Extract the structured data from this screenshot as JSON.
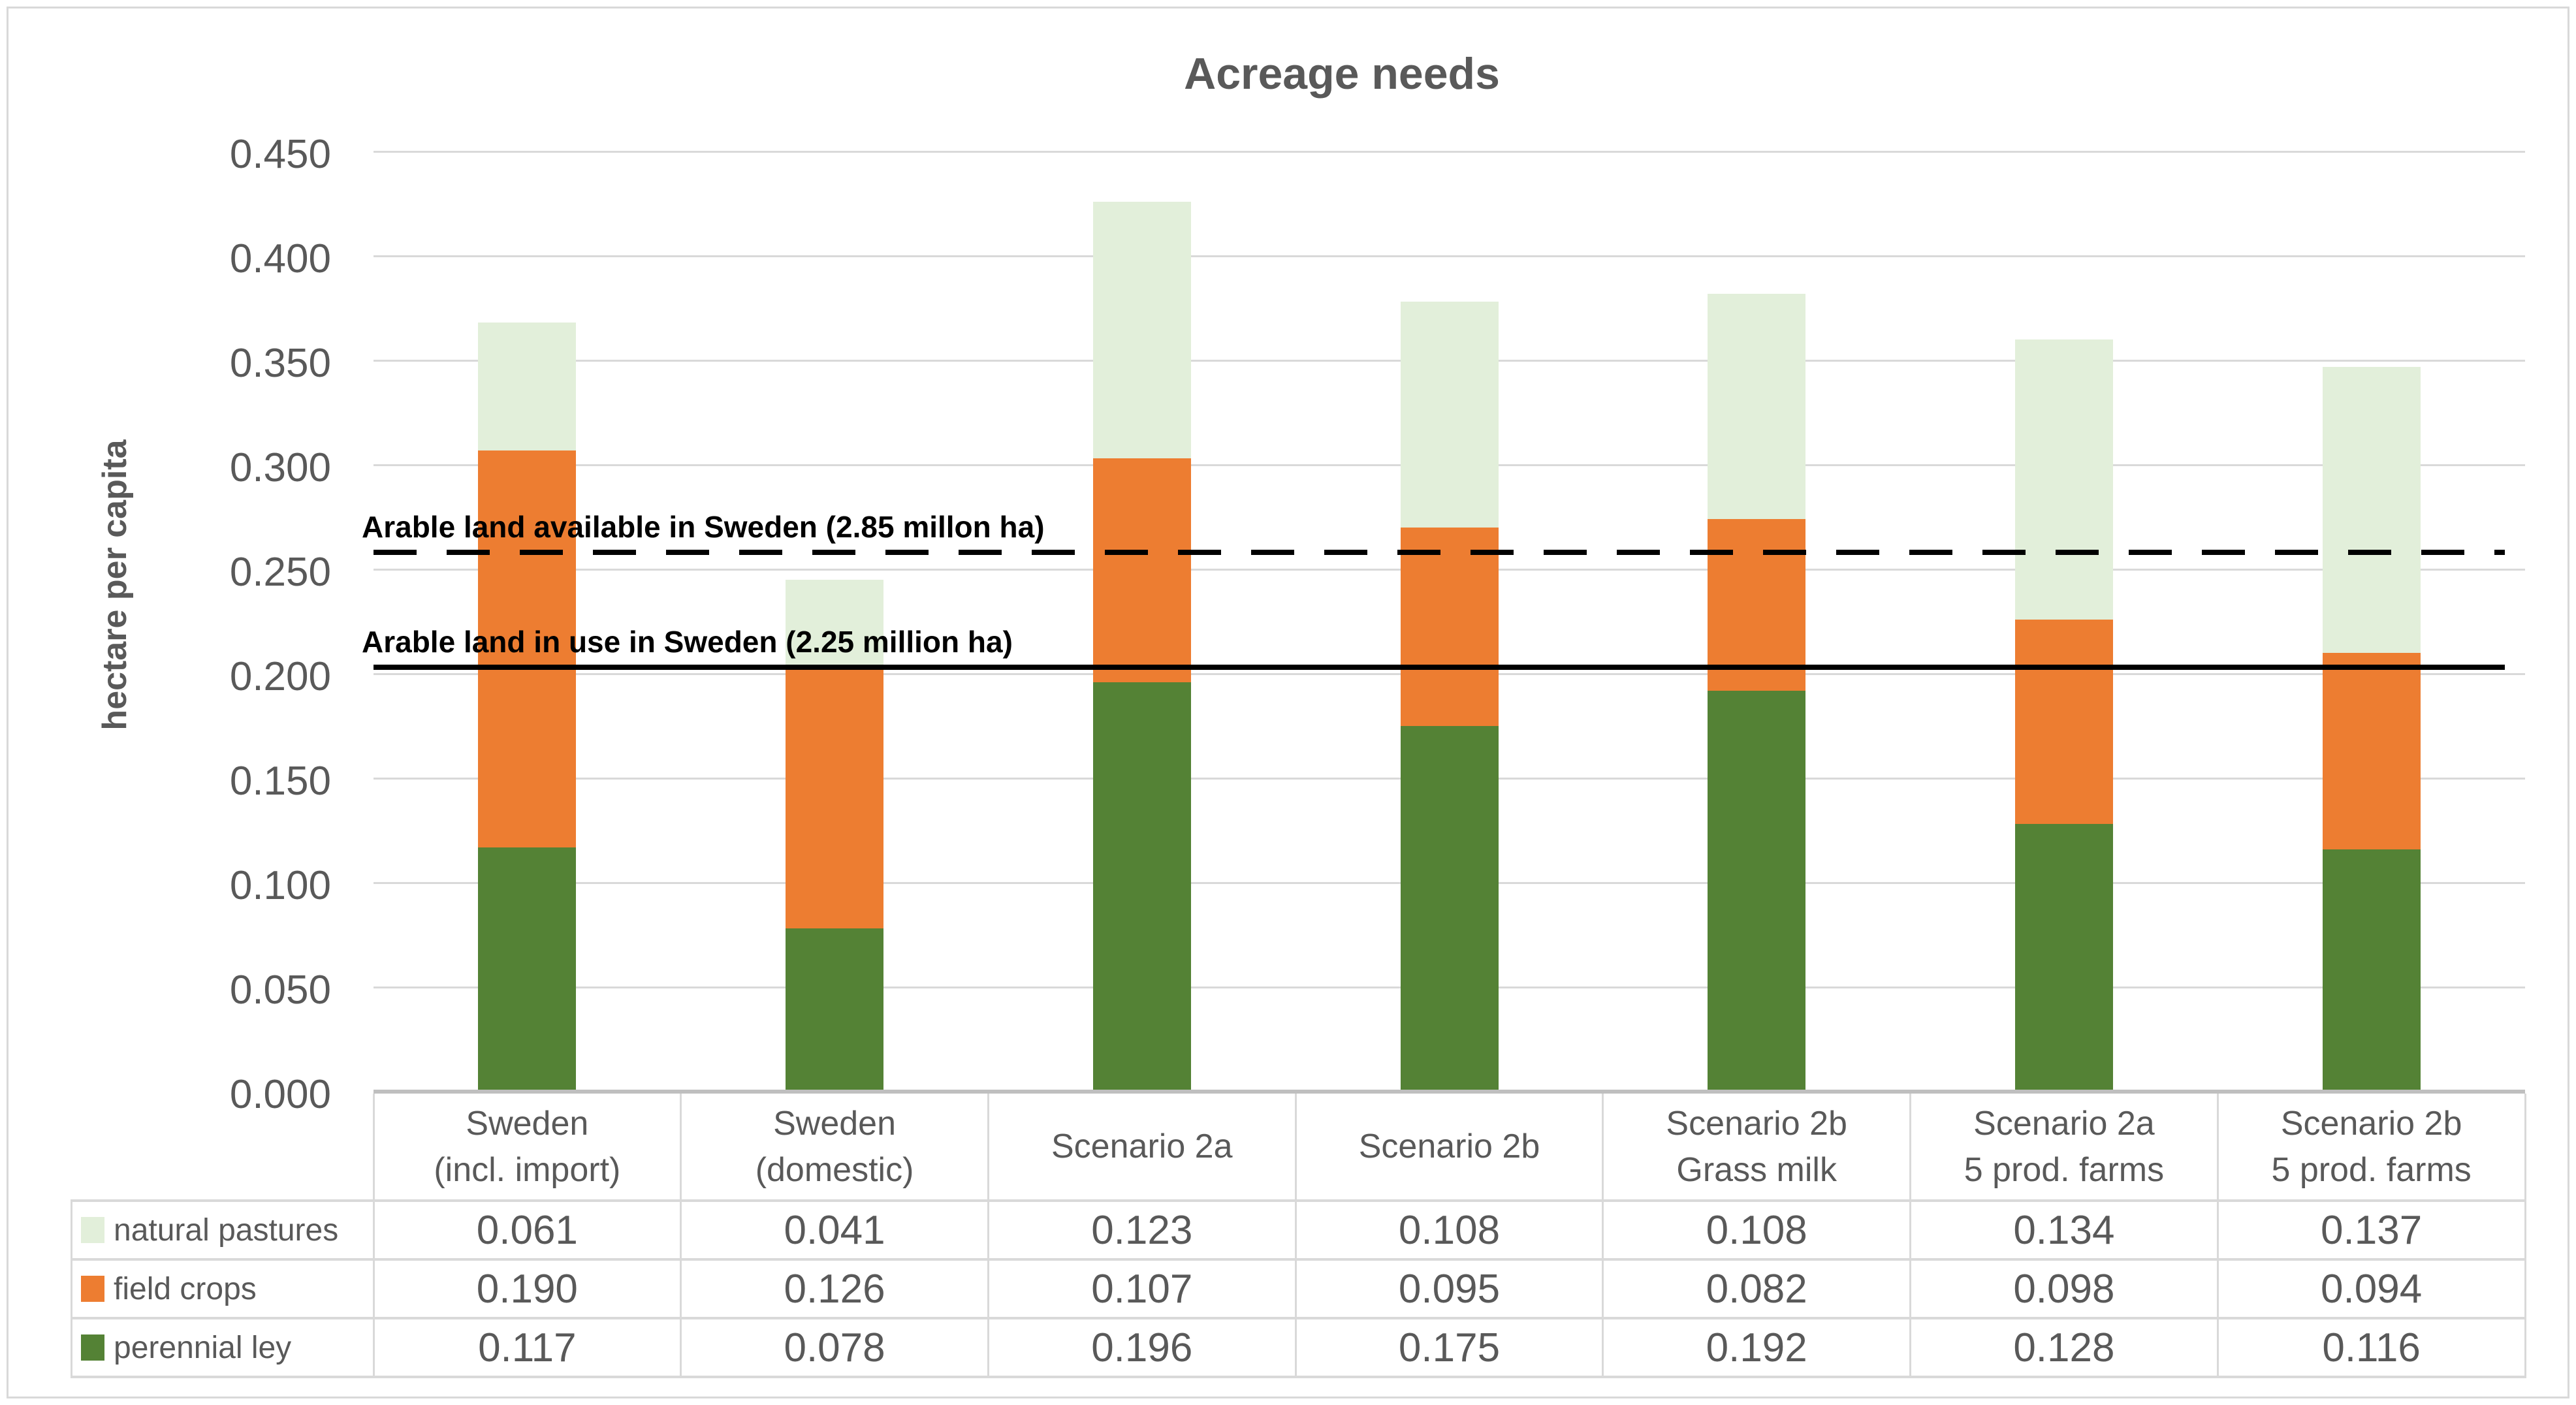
{
  "page": {
    "background": "#FFFFFF",
    "border_color": "#D9D9D9"
  },
  "chart_data": {
    "type": "bar",
    "stacked": true,
    "title": "Acreage needs",
    "ylabel": "hectare per capita",
    "xlabel": "",
    "ylim": [
      0,
      0.45
    ],
    "ytick_step": 0.05,
    "ytick_labels": [
      "0.000",
      "0.050",
      "0.100",
      "0.150",
      "0.200",
      "0.250",
      "0.300",
      "0.350",
      "0.400",
      "0.450"
    ],
    "grid": true,
    "legend_position": "data-table-left",
    "data_table_shown": true,
    "categories": [
      [
        "Sweden",
        "(incl. import)"
      ],
      [
        "Sweden",
        "(domestic)"
      ],
      [
        "Scenario 2a"
      ],
      [
        "Scenario 2b"
      ],
      [
        "Scenario 2b",
        "Grass milk"
      ],
      [
        "Scenario 2a",
        "5 prod. farms"
      ],
      [
        "Scenario 2b",
        "5 prod. farms"
      ]
    ],
    "series": [
      {
        "name": "natural pastures",
        "color": "#E2EFDA",
        "values": [
          0.061,
          0.041,
          0.123,
          0.108,
          0.108,
          0.134,
          0.137
        ]
      },
      {
        "name": "field crops",
        "color": "#ED7D31",
        "values": [
          0.19,
          0.126,
          0.107,
          0.095,
          0.082,
          0.098,
          0.094
        ]
      },
      {
        "name": "perennial ley",
        "color": "#548235",
        "values": [
          0.117,
          0.078,
          0.196,
          0.175,
          0.192,
          0.128,
          0.116
        ]
      }
    ],
    "stack_order_bottom_to_top": [
      "perennial ley",
      "field crops",
      "natural pastures"
    ],
    "stack_totals": [
      0.368,
      0.245,
      0.426,
      0.378,
      0.382,
      0.36,
      0.347
    ],
    "reference_lines": [
      {
        "label": "Arable land available in Sweden (2.85 millon ha)",
        "value": 0.258,
        "style": "dashed",
        "color": "#000000"
      },
      {
        "label": "Arable land in use in Sweden (2.25 million ha)",
        "value": 0.203,
        "style": "solid",
        "color": "#000000"
      }
    ]
  },
  "styles": {
    "text_color": "#595959",
    "gridline_color": "#D9D9D9",
    "axis_line_color": "#BFBFBF",
    "reference_line_color": "#000000"
  }
}
